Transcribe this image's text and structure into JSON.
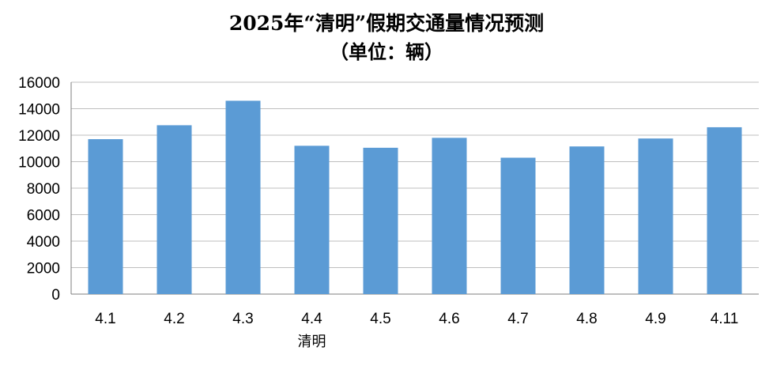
{
  "chart_data": {
    "type": "bar",
    "title": "2025年“清明”假期交通量情况预测",
    "subtitle": "（单位：辆）",
    "categories": [
      "4.1",
      "4.2",
      "4.3",
      "4.4",
      "4.5",
      "4.6",
      "4.7",
      "4.8",
      "4.9",
      "4.11"
    ],
    "category_annotations": {
      "4.4": "清明"
    },
    "values": [
      11700,
      12750,
      14600,
      11200,
      11050,
      11800,
      10300,
      11150,
      11750,
      12600
    ],
    "ylim": [
      0,
      16000
    ],
    "yticks": [
      "0",
      "2000",
      "4000",
      "6000",
      "8000",
      "10000",
      "12000",
      "14000",
      "16000"
    ],
    "xlabel": "",
    "ylabel": "",
    "grid": true,
    "legend": "none",
    "colors": {
      "bar": "#5B9BD5",
      "grid": "#BFBFBF",
      "axis": "#7F7F7F"
    }
  }
}
